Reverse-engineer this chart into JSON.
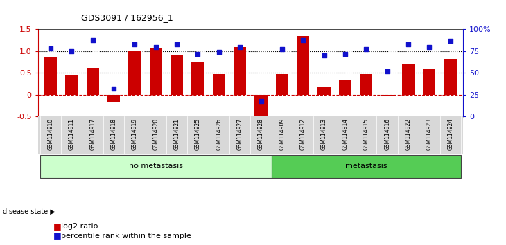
{
  "title": "GDS3091 / 162956_1",
  "samples": [
    "GSM114910",
    "GSM114911",
    "GSM114917",
    "GSM114918",
    "GSM114919",
    "GSM114920",
    "GSM114921",
    "GSM114925",
    "GSM114926",
    "GSM114927",
    "GSM114928",
    "GSM114909",
    "GSM114912",
    "GSM114913",
    "GSM114914",
    "GSM114915",
    "GSM114916",
    "GSM114922",
    "GSM114923",
    "GSM114924"
  ],
  "log2_ratio": [
    0.88,
    0.46,
    0.62,
    -0.18,
    1.02,
    1.06,
    0.9,
    0.75,
    0.47,
    1.1,
    -0.55,
    0.47,
    1.35,
    0.18,
    0.35,
    0.48,
    -0.02,
    0.7,
    0.6,
    0.83
  ],
  "percentile": [
    78,
    75,
    88,
    32,
    83,
    80,
    83,
    72,
    74,
    80,
    18,
    77,
    88,
    70,
    72,
    77,
    52,
    83,
    80,
    87
  ],
  "no_metastasis_count": 11,
  "metastasis_count": 9,
  "ylim_left": [
    -0.5,
    1.5
  ],
  "ylim_right": [
    0,
    100
  ],
  "hline_dotted": [
    0.5,
    1.0
  ],
  "hline_dashed": 0.0,
  "bar_color": "#cc0000",
  "dot_color": "#1111cc",
  "no_metastasis_color": "#ccffcc",
  "metastasis_color": "#55cc55",
  "right_axis_color": "#1111cc",
  "left_axis_color": "#cc0000",
  "label_log2": "log2 ratio",
  "label_percentile": "percentile rank within the sample",
  "disease_state_label": "disease state",
  "no_metastasis_label": "no metastasis",
  "metastasis_label": "metastasis",
  "left_yticks": [
    -0.5,
    0,
    0.5,
    1.0,
    1.5
  ],
  "right_yticks": [
    0,
    25,
    50,
    75,
    100
  ],
  "right_yticklabels": [
    "0",
    "25",
    "50",
    "75",
    "100%"
  ]
}
